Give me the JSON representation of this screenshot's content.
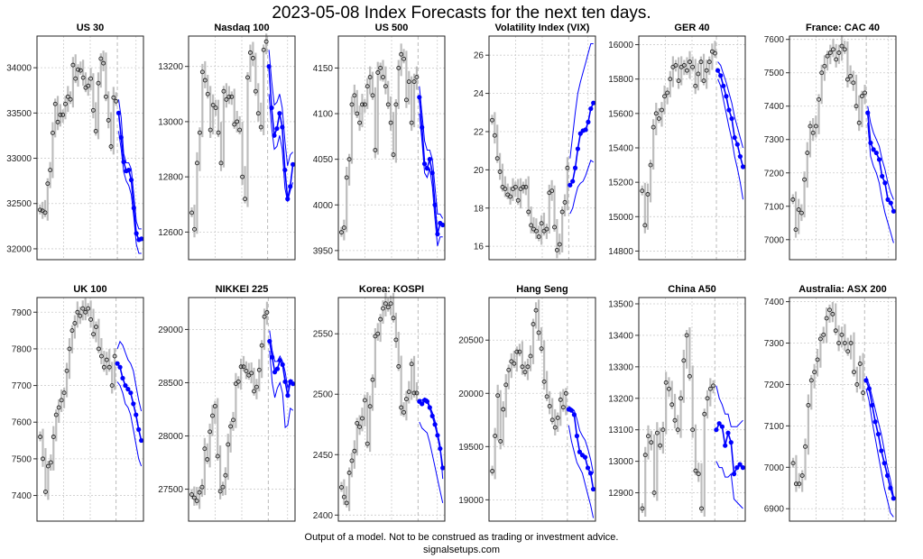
{
  "title": "2023-05-08 Index Forecasts for the next ten days.",
  "footer": {
    "disclaimer": "Output of a model. Not to be construed as trading or investment advice.",
    "site": "signalsetups.com"
  },
  "colors": {
    "history": "#bdbdbd",
    "forecast": "#0000ff",
    "grid": "#cccccc"
  },
  "chart_data": [
    {
      "type": "line",
      "title": "US 30",
      "ylim": [
        31880,
        34350
      ],
      "yticks": [
        32000,
        32500,
        33000,
        33500,
        34000
      ],
      "history": [
        32430,
        32420,
        32400,
        32720,
        32870,
        33280,
        33600,
        33400,
        33480,
        33480,
        33600,
        33680,
        33650,
        34030,
        33880,
        33980,
        33970,
        33890,
        33780,
        33800,
        33880,
        33530,
        33300,
        33830,
        34100,
        34050,
        33680,
        33420,
        33130,
        33670,
        33630
      ],
      "forecast": [
        33500,
        33230,
        32960,
        32860,
        32870,
        32760,
        32450,
        32170,
        32100,
        32110
      ],
      "upper": [
        33650,
        33450,
        33050,
        32950,
        32950,
        32880,
        32600,
        32300,
        32220,
        32220
      ],
      "lower": [
        33300,
        33100,
        32850,
        32750,
        32700,
        32600,
        32350,
        32050,
        31950,
        31950
      ]
    },
    {
      "type": "line",
      "title": "Nasdaq 100",
      "ylim": [
        12500,
        13310
      ],
      "yticks": [
        12600,
        12800,
        13000,
        13200
      ],
      "history": [
        12670,
        12610,
        12850,
        12960,
        13180,
        13150,
        13100,
        12970,
        13060,
        13050,
        12960,
        12850,
        13110,
        13080,
        13090,
        13090,
        12990,
        13000,
        12970,
        12800,
        12720,
        13160,
        13250,
        13230,
        13110,
        13030,
        12980,
        13260,
        13290
      ],
      "forecast": [
        13200,
        13050,
        12950,
        12975,
        13030,
        12980,
        12825,
        12720,
        12765,
        12845
      ],
      "upper": [
        13260,
        13150,
        13060,
        13070,
        13100,
        13050,
        12930,
        12840,
        12880,
        12890
      ],
      "lower": [
        13100,
        12980,
        12900,
        12910,
        12950,
        12900,
        12760,
        12710,
        12750,
        12780
      ]
    },
    {
      "type": "line",
      "title": "US 500",
      "ylim": [
        3940,
        4185
      ],
      "yticks": [
        3950,
        4000,
        4050,
        4100,
        4150
      ],
      "history": [
        3970,
        3975,
        4030,
        4050,
        4110,
        4120,
        4100,
        4090,
        4110,
        4110,
        4130,
        4140,
        4120,
        4060,
        4145,
        4150,
        4140,
        4130,
        4110,
        4090,
        4055,
        4110,
        4150,
        4165,
        4160,
        4115,
        4135,
        4090,
        4135,
        4140
      ],
      "forecast": [
        4118,
        4085,
        4045,
        4040,
        4050,
        4035,
        4000,
        3968,
        3980,
        3978
      ],
      "upper": [
        4130,
        4100,
        4070,
        4060,
        4060,
        4050,
        4020,
        3990,
        3990,
        3985
      ],
      "lower": [
        4100,
        4070,
        4035,
        4030,
        4040,
        4020,
        3985,
        3955,
        3965,
        3965
      ]
    },
    {
      "type": "line",
      "title": "Volatility Index (VIX)",
      "ylim": [
        15.3,
        27
      ],
      "yticks": [
        16,
        18,
        20,
        22,
        24,
        26
      ],
      "history": [
        22.6,
        21.8,
        20.6,
        19.9,
        19.1,
        19.0,
        18.7,
        18.6,
        19.0,
        19.1,
        18.4,
        19.0,
        19.1,
        19.1,
        17.8,
        17.1,
        16.9,
        16.8,
        16.5,
        17.2,
        16.8,
        16.9,
        18.8,
        18.9,
        17.0,
        15.8,
        16.1,
        17.8,
        18.3,
        20.1
      ],
      "forecast": [
        19.2,
        19.4,
        20.1,
        21.1,
        21.9,
        22.05,
        22.1,
        22.5,
        23.2,
        23.5
      ],
      "upper": [
        20.6,
        21.8,
        23.0,
        24.0,
        24.6,
        25.1,
        25.6,
        26.1,
        26.6,
        26.6
      ],
      "lower": [
        17.7,
        18.0,
        18.6,
        19.1,
        19.3,
        19.4,
        19.7,
        20.1,
        20.5,
        20.4
      ]
    },
    {
      "type": "line",
      "title": "GER 40",
      "ylim": [
        14750,
        16050
      ],
      "yticks": [
        14800,
        15000,
        15200,
        15400,
        15600,
        15800,
        16000
      ],
      "history": [
        15150,
        14950,
        15130,
        15300,
        15520,
        15600,
        15570,
        15620,
        15700,
        15720,
        15800,
        15870,
        15880,
        15790,
        15870,
        15880,
        15850,
        15900,
        15870,
        15760,
        15830,
        15900,
        15790,
        15850,
        15900,
        15960,
        15950
      ],
      "forecast": [
        15850,
        15820,
        15760,
        15700,
        15620,
        15570,
        15460,
        15420,
        15350,
        15290
      ],
      "upper": [
        15900,
        15880,
        15830,
        15780,
        15720,
        15660,
        15580,
        15520,
        15460,
        15400
      ],
      "lower": [
        15800,
        15760,
        15680,
        15600,
        15520,
        15450,
        15350,
        15280,
        15200,
        15100
      ]
    },
    {
      "type": "line",
      "title": "France: CAC 40",
      "ylim": [
        6940,
        7610
      ],
      "yticks": [
        7000,
        7100,
        7200,
        7300,
        7400,
        7500,
        7600
      ],
      "history": [
        7120,
        7030,
        7090,
        7080,
        7180,
        7260,
        7340,
        7320,
        7340,
        7420,
        7500,
        7520,
        7550,
        7560,
        7570,
        7540,
        7560,
        7580,
        7570,
        7480,
        7490,
        7470,
        7400,
        7350,
        7430,
        7440
      ],
      "forecast": [
        7380,
        7290,
        7270,
        7260,
        7240,
        7190,
        7170,
        7120,
        7110,
        7085
      ],
      "upper": [
        7400,
        7350,
        7320,
        7300,
        7280,
        7240,
        7210,
        7170,
        7140,
        7120
      ],
      "lower": [
        7350,
        7250,
        7220,
        7200,
        7170,
        7120,
        7080,
        7050,
        7020,
        6990
      ]
    },
    {
      "type": "line",
      "title": "UK 100",
      "ylim": [
        7330,
        7940
      ],
      "yticks": [
        7400,
        7500,
        7600,
        7700,
        7800,
        7900
      ],
      "history": [
        7560,
        7500,
        7410,
        7480,
        7490,
        7560,
        7620,
        7640,
        7660,
        7680,
        7740,
        7800,
        7850,
        7870,
        7900,
        7890,
        7910,
        7900,
        7910,
        7880,
        7840,
        7860,
        7800,
        7780,
        7750,
        7770,
        7750,
        7700,
        7780
      ],
      "forecast": [
        7760,
        7750,
        7720,
        7700,
        7690,
        7680,
        7650,
        7620,
        7580,
        7550
      ],
      "upper": [
        7800,
        7820,
        7810,
        7790,
        7770,
        7760,
        7740,
        7700,
        7660,
        7630
      ],
      "lower": [
        7710,
        7700,
        7680,
        7650,
        7640,
        7620,
        7580,
        7540,
        7500,
        7480
      ]
    },
    {
      "type": "line",
      "title": "NIKKEI 225",
      "ylim": [
        27200,
        29300
      ],
      "yticks": [
        27500,
        28000,
        28500,
        29000
      ],
      "history": [
        27450,
        27420,
        27390,
        27470,
        27520,
        27880,
        27780,
        28040,
        28190,
        28280,
        27810,
        27480,
        27520,
        27630,
        27920,
        28090,
        28150,
        28490,
        28510,
        28650,
        28650,
        28610,
        28570,
        28590,
        28420,
        28460,
        28620,
        28850,
        29120,
        29160
      ],
      "forecast": [
        28890,
        28740,
        28600,
        28630,
        28710,
        28670,
        28510,
        28380,
        28510,
        28490
      ],
      "upper": [
        28990,
        28800,
        28700,
        28700,
        28750,
        28700,
        28600,
        28450,
        28530,
        28520
      ],
      "lower": [
        28800,
        28500,
        28360,
        28450,
        28500,
        28400,
        28080,
        28100,
        28260,
        28240
      ]
    },
    {
      "type": "line",
      "title": "Korea: KOSPI",
      "ylim": [
        2395,
        2580
      ],
      "yticks": [
        2400,
        2450,
        2500,
        2550
      ],
      "history": [
        2423,
        2415,
        2410,
        2435,
        2445,
        2453,
        2476,
        2473,
        2480,
        2495,
        2459,
        2490,
        2512,
        2548,
        2550,
        2562,
        2571,
        2575,
        2572,
        2575,
        2563,
        2545,
        2523,
        2489,
        2485,
        2496,
        2502,
        2525,
        2501,
        2501
      ],
      "forecast": [
        2494,
        2492,
        2495,
        2494,
        2489,
        2482,
        2475,
        2466,
        2455,
        2439
      ],
      "upper": [
        2496,
        2495,
        2497,
        2496,
        2490,
        2485,
        2478,
        2468,
        2458,
        2430
      ],
      "lower": [
        2477,
        2472,
        2470,
        2468,
        2460,
        2450,
        2440,
        2430,
        2420,
        2410
      ]
    },
    {
      "type": "line",
      "title": "Hang Seng",
      "ylim": [
        18800,
        20900
      ],
      "yticks": [
        19000,
        19500,
        20000,
        20500
      ],
      "history": [
        19270,
        19600,
        19980,
        19550,
        19850,
        20080,
        20220,
        20300,
        20280,
        20390,
        20390,
        20250,
        20200,
        20250,
        20350,
        20650,
        20780,
        20570,
        20420,
        20110,
        19970,
        19880,
        19750,
        19680,
        19770,
        19940,
        19870,
        20000
      ],
      "forecast": [
        19850,
        19840,
        19800,
        19600,
        19450,
        19420,
        19400,
        19300,
        19250,
        19100
      ],
      "upper": [
        19880,
        19860,
        19840,
        19760,
        19650,
        19600,
        19560,
        19480,
        19380,
        19250
      ],
      "lower": [
        19700,
        19550,
        19450,
        19350,
        19300,
        19250,
        19150,
        19050,
        18950,
        18830
      ]
    },
    {
      "type": "line",
      "title": "China A50",
      "ylim": [
        12810,
        13520
      ],
      "yticks": [
        12800,
        12900,
        13000,
        13100,
        13200,
        13300,
        13400,
        13500
      ],
      "history": [
        12850,
        13020,
        13080,
        13060,
        12900,
        13090,
        13050,
        13100,
        13250,
        13230,
        13180,
        13130,
        13100,
        13200,
        13320,
        13400,
        13270,
        13100,
        12970,
        12960,
        12850,
        13150,
        13200,
        13230,
        13240
      ],
      "forecast": [
        13100,
        13120,
        13110,
        13050,
        13090,
        13060,
        12960,
        12980,
        12990,
        12980
      ],
      "upper": [
        13240,
        13200,
        13180,
        13150,
        13150,
        13110,
        13110,
        13110,
        13120,
        13130
      ],
      "lower": [
        13000,
        12980,
        12980,
        12950,
        12950,
        12960,
        12880,
        12870,
        12860,
        12850
      ]
    },
    {
      "type": "line",
      "title": "Australia: ASX 200",
      "ylim": [
        6870,
        7410
      ],
      "yticks": [
        6900,
        7000,
        7100,
        7200,
        7300,
        7400
      ],
      "history": [
        7010,
        6960,
        6960,
        6980,
        7050,
        7150,
        7210,
        7230,
        7260,
        7310,
        7320,
        7360,
        7380,
        7370,
        7330,
        7300,
        7320,
        7300,
        7280,
        7300,
        7230,
        7200,
        7250,
        7180
      ],
      "forecast": [
        7210,
        7190,
        7150,
        7110,
        7080,
        7040,
        7010,
        6980,
        6950,
        6925
      ],
      "upper": [
        7220,
        7200,
        7170,
        7140,
        7110,
        7080,
        7040,
        7000,
        6970,
        6930
      ],
      "lower": [
        7190,
        7160,
        7110,
        7070,
        7030,
        6990,
        6950,
        6920,
        6890,
        6880
      ]
    }
  ]
}
